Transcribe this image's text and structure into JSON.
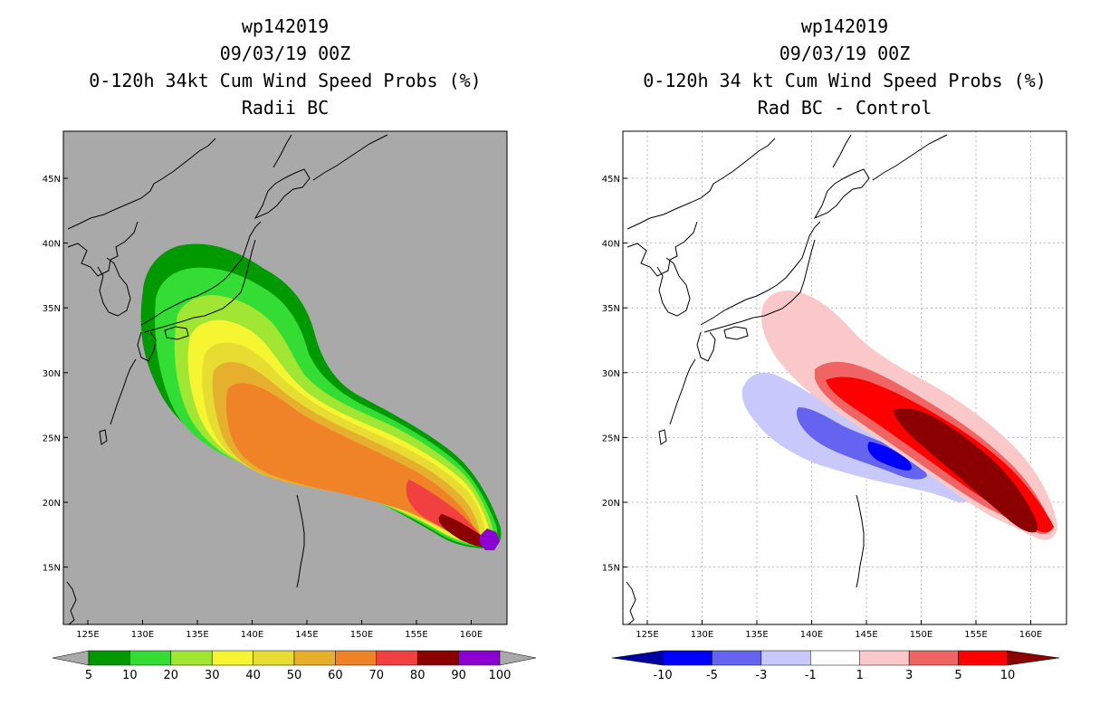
{
  "left_panel": {
    "title_lines": [
      "wp142019",
      "09/03/19 00Z",
      "0-120h 34kt Cum Wind Speed Probs (%)",
      "Radii BC"
    ],
    "background_color": "#a9a9a9",
    "lat_ticks": [
      "45N",
      "40N",
      "35N",
      "30N",
      "25N",
      "20N",
      "15N"
    ],
    "lon_ticks": [
      "125E",
      "130E",
      "135E",
      "140E",
      "145E",
      "150E",
      "155E",
      "160E"
    ],
    "colorbar": {
      "colors": [
        "#009900",
        "#33dd33",
        "#a0e632",
        "#f5f532",
        "#e6dc32",
        "#e6af2d",
        "#f08228",
        "#f04040",
        "#8b0000",
        "#8c00d2"
      ],
      "labels": [
        "5",
        "10",
        "20",
        "30",
        "40",
        "50",
        "60",
        "70",
        "80",
        "90",
        "100"
      ]
    }
  },
  "right_panel": {
    "title_lines": [
      "wp142019",
      "09/03/19 00Z",
      "0-120h 34 kt Cum Wind Speed Probs (%)",
      "Rad BC - Control"
    ],
    "background_color": "#ffffff",
    "lat_ticks": [
      "45N",
      "40N",
      "35N",
      "30N",
      "25N",
      "20N",
      "15N"
    ],
    "lon_ticks": [
      "125E",
      "130E",
      "135E",
      "140E",
      "145E",
      "150E",
      "155E",
      "160E"
    ],
    "colorbar": {
      "colors": [
        "#0000a0",
        "#0000ff",
        "#6464f0",
        "#c8c8fa",
        "#ffffff",
        "#fac8c8",
        "#f06464",
        "#ff0000",
        "#8b0000"
      ],
      "labels": [
        "-10",
        "-5",
        "-3",
        "-1",
        "1",
        "3",
        "5",
        "10"
      ]
    }
  }
}
